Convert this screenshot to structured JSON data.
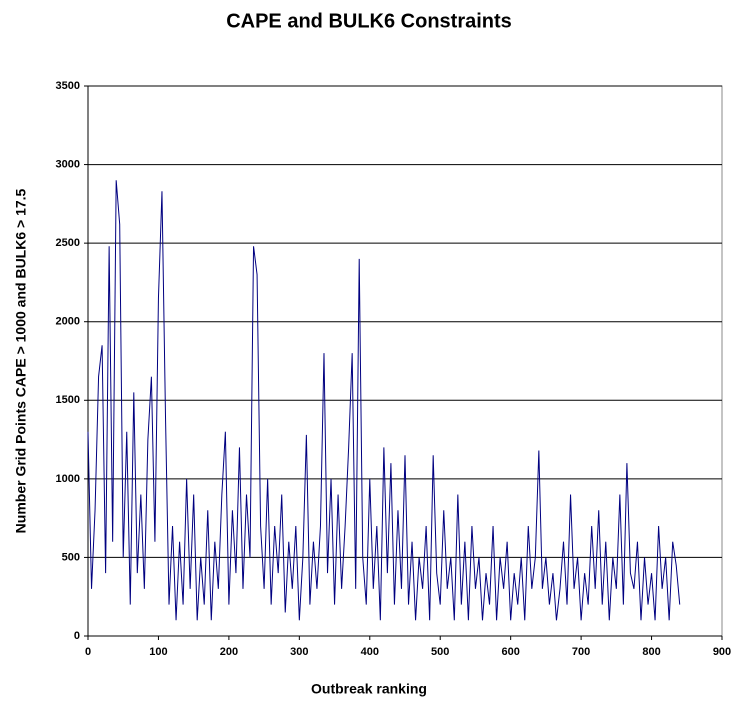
{
  "chart_data": {
    "type": "line",
    "title": "CAPE and BULK6 Constraints",
    "x_label": "Outbreak ranking",
    "y_label": "Number Grid Points CAPE > 1000 and BULK6 > 17.5",
    "color": "#000080",
    "grid": true,
    "xlim": [
      0,
      900
    ],
    "xticks": [
      0,
      100,
      200,
      300,
      400,
      500,
      600,
      700,
      800,
      900
    ],
    "ylim": [
      0,
      3500
    ],
    "yticks": [
      0,
      500,
      1000,
      1500,
      2000,
      2500,
      3000,
      3500
    ],
    "x": [
      0,
      5,
      10,
      15,
      20,
      25,
      30,
      35,
      40,
      45,
      50,
      55,
      60,
      65,
      70,
      75,
      80,
      85,
      90,
      95,
      100,
      105,
      110,
      115,
      120,
      125,
      130,
      135,
      140,
      145,
      150,
      155,
      160,
      165,
      170,
      175,
      180,
      185,
      190,
      195,
      200,
      205,
      210,
      215,
      220,
      225,
      230,
      235,
      240,
      245,
      250,
      255,
      260,
      265,
      270,
      275,
      280,
      285,
      290,
      295,
      300,
      305,
      310,
      315,
      320,
      325,
      330,
      335,
      340,
      345,
      350,
      355,
      360,
      365,
      370,
      375,
      380,
      385,
      390,
      395,
      400,
      405,
      410,
      415,
      420,
      425,
      430,
      435,
      440,
      445,
      450,
      455,
      460,
      465,
      470,
      475,
      480,
      485,
      490,
      495,
      500,
      505,
      510,
      515,
      520,
      525,
      530,
      535,
      540,
      545,
      550,
      555,
      560,
      565,
      570,
      575,
      580,
      585,
      590,
      595,
      600,
      605,
      610,
      615,
      620,
      625,
      630,
      635,
      640,
      645,
      650,
      655,
      660,
      665,
      670,
      675,
      680,
      685,
      690,
      695,
      700,
      705,
      710,
      715,
      720,
      725,
      730,
      735,
      740,
      745,
      750,
      755,
      760,
      765,
      770,
      775,
      780,
      785,
      790,
      795,
      800,
      805,
      810,
      815,
      820,
      825,
      830,
      835,
      840
    ],
    "values": [
      1300,
      300,
      800,
      1650,
      1850,
      400,
      2480,
      600,
      2900,
      2620,
      500,
      1300,
      200,
      1550,
      400,
      900,
      300,
      1250,
      1650,
      600,
      2150,
      2830,
      1400,
      200,
      700,
      100,
      600,
      200,
      1000,
      300,
      900,
      100,
      500,
      200,
      800,
      100,
      600,
      300,
      900,
      1300,
      200,
      800,
      400,
      1200,
      300,
      900,
      500,
      2480,
      2300,
      700,
      300,
      1000,
      200,
      700,
      400,
      900,
      150,
      600,
      300,
      700,
      100,
      500,
      1280,
      200,
      600,
      300,
      700,
      1800,
      400,
      1000,
      200,
      900,
      300,
      700,
      1200,
      1800,
      300,
      2400,
      500,
      200,
      1000,
      300,
      700,
      100,
      1200,
      400,
      1100,
      200,
      800,
      300,
      1150,
      200,
      600,
      100,
      500,
      300,
      700,
      100,
      1150,
      400,
      200,
      800,
      300,
      500,
      100,
      900,
      200,
      600,
      100,
      700,
      300,
      500,
      100,
      400,
      200,
      700,
      100,
      500,
      300,
      600,
      100,
      400,
      200,
      500,
      100,
      700,
      300,
      500,
      1180,
      300,
      500,
      200,
      400,
      100,
      300,
      600,
      200,
      900,
      300,
      500,
      100,
      400,
      200,
      700,
      300,
      800,
      200,
      600,
      100,
      500,
      300,
      900,
      200,
      1100,
      400,
      300,
      600,
      100,
      500,
      200,
      400,
      100,
      700,
      300,
      500,
      100,
      600,
      450,
      200
    ]
  }
}
